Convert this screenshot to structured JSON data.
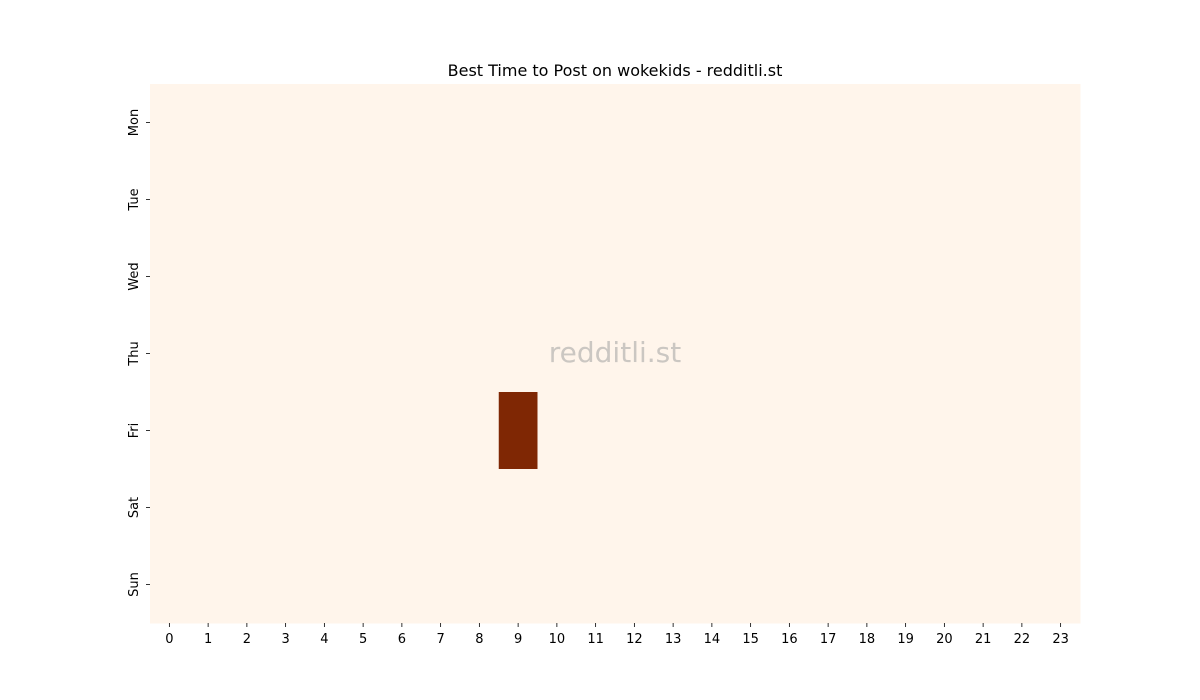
{
  "chart_data": {
    "type": "heatmap",
    "title": "Best Time to Post on wokekids - redditli.st",
    "xlabel": "",
    "ylabel": "",
    "x_categories": [
      "0",
      "1",
      "2",
      "3",
      "4",
      "5",
      "6",
      "7",
      "8",
      "9",
      "10",
      "11",
      "12",
      "13",
      "14",
      "15",
      "16",
      "17",
      "18",
      "19",
      "20",
      "21",
      "22",
      "23"
    ],
    "y_categories": [
      "Mon",
      "Tue",
      "Wed",
      "Thu",
      "Fri",
      "Sat",
      "Sun"
    ],
    "values": [
      [
        0,
        0,
        0,
        0,
        0,
        0,
        0,
        0,
        0,
        0,
        0,
        0,
        0,
        0,
        0,
        0,
        0,
        0,
        0,
        0,
        0,
        0,
        0,
        0
      ],
      [
        0,
        0,
        0,
        0,
        0,
        0,
        0,
        0,
        0,
        0,
        0,
        0,
        0,
        0,
        0,
        0,
        0,
        0,
        0,
        0,
        0,
        0,
        0,
        0
      ],
      [
        0,
        0,
        0,
        0,
        0,
        0,
        0,
        0,
        0,
        0,
        0,
        0,
        0,
        0,
        0,
        0,
        0,
        0,
        0,
        0,
        0,
        0,
        0,
        0
      ],
      [
        0,
        0,
        0,
        0,
        0,
        0,
        0,
        0,
        0,
        0,
        0,
        0,
        0,
        0,
        0,
        0,
        0,
        0,
        0,
        0,
        0,
        0,
        0,
        0
      ],
      [
        0,
        0,
        0,
        0,
        0,
        0,
        0,
        0,
        0,
        1,
        0,
        0,
        0,
        0,
        0,
        0,
        0,
        0,
        0,
        0,
        0,
        0,
        0,
        0
      ],
      [
        0,
        0,
        0,
        0,
        0,
        0,
        0,
        0,
        0,
        0,
        0,
        0,
        0,
        0,
        0,
        0,
        0,
        0,
        0,
        0,
        0,
        0,
        0,
        0
      ],
      [
        0,
        0,
        0,
        0,
        0,
        0,
        0,
        0,
        0,
        0,
        0,
        0,
        0,
        0,
        0,
        0,
        0,
        0,
        0,
        0,
        0,
        0,
        0,
        0
      ]
    ],
    "colormap": {
      "low": "#fff5eb",
      "high": "#7f2704"
    },
    "colorbar": false,
    "grid": false,
    "watermark": "redditli.st"
  }
}
